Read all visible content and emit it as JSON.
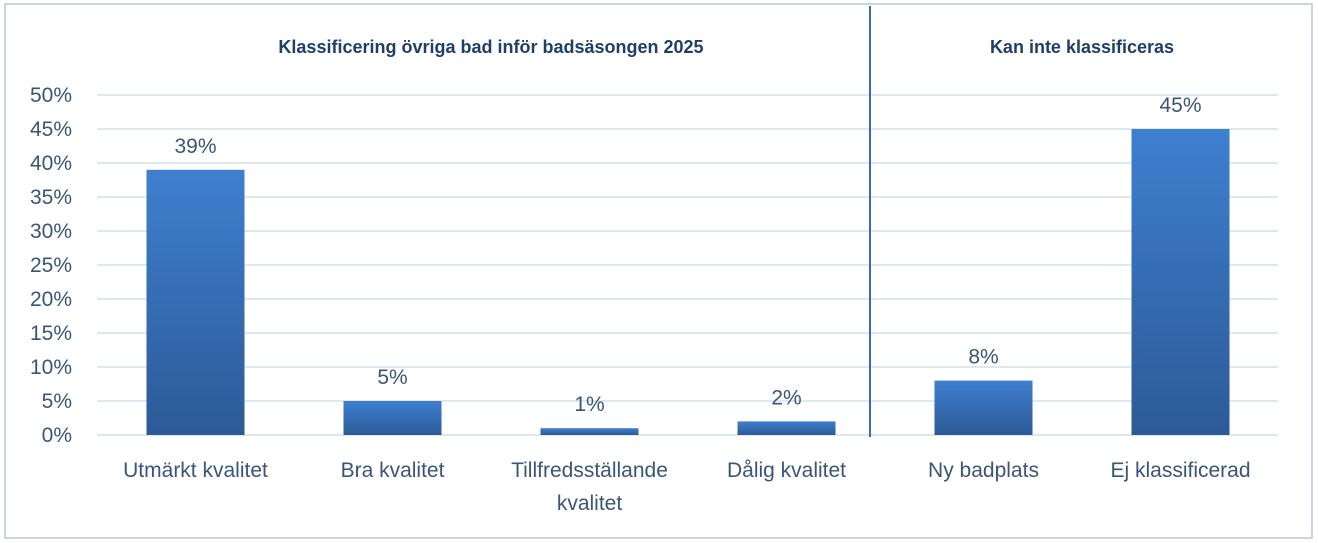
{
  "chart_data": {
    "type": "bar",
    "y_axis": {
      "min": 0,
      "max": 50,
      "step": 5,
      "tick_labels": [
        "0%",
        "5%",
        "10%",
        "15%",
        "20%",
        "25%",
        "30%",
        "35%",
        "40%",
        "45%",
        "50%"
      ]
    },
    "grid": true,
    "bar_color": "#3b77c4",
    "groups": [
      {
        "title": "Klassificering övriga bad inför badsäsongen 2025",
        "categories": [
          [
            "Utmärkt kvalitet"
          ],
          [
            "Bra kvalitet"
          ],
          [
            "Tillfredsställande",
            "kvalitet"
          ],
          [
            "Dålig kvalitet"
          ]
        ],
        "values": [
          39,
          5,
          1,
          2
        ],
        "labels": [
          "39%",
          "5%",
          "1%",
          "2%"
        ]
      },
      {
        "title": "Kan inte klassificeras",
        "categories": [
          [
            "Ny badplats"
          ],
          [
            "Ej klassificerad"
          ]
        ],
        "values": [
          8,
          45
        ],
        "labels": [
          "8%",
          "45%"
        ]
      }
    ]
  }
}
